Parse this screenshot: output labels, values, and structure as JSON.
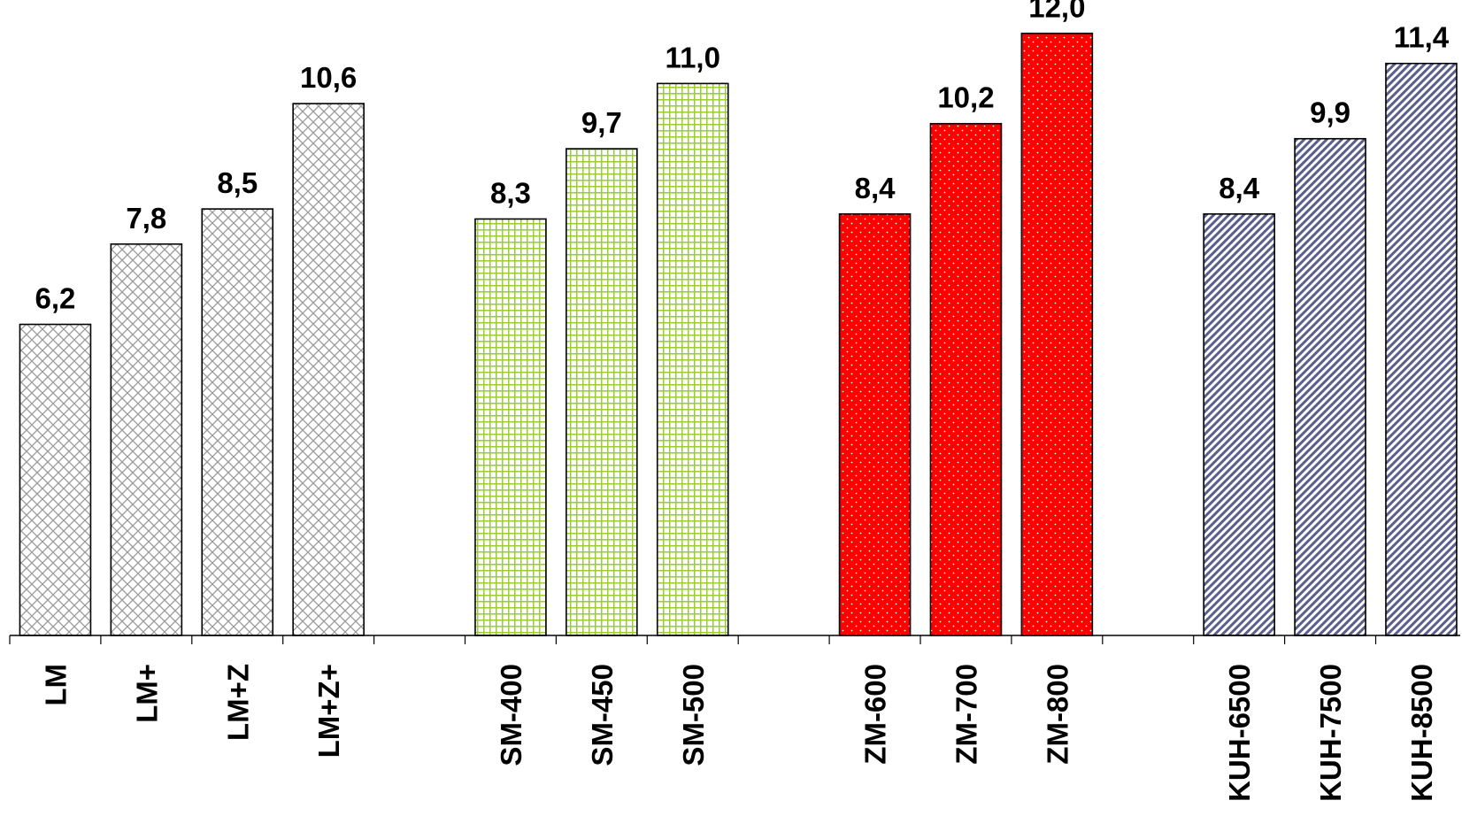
{
  "chart_data": {
    "type": "bar",
    "title": "",
    "xlabel": "",
    "ylabel": "",
    "ylim": [
      0,
      12.4
    ],
    "grid": false,
    "legend": "none",
    "value_labels": "above-bars",
    "category_label_orientation": "vertical",
    "categories": [
      "LM",
      "LM+",
      "LM+Z",
      "LM+Z+",
      "",
      "SM-400",
      "SM-450",
      "SM-500",
      "",
      "ZM-600",
      "ZM-700",
      "ZM-800",
      "",
      "KUH-6500",
      "KUH-7500",
      "KUH-8500"
    ],
    "values": [
      6.2,
      7.8,
      8.5,
      10.6,
      null,
      8.3,
      9.7,
      11.0,
      null,
      8.4,
      10.2,
      12.0,
      null,
      8.4,
      9.9,
      11.4
    ],
    "value_labels_text": [
      "6,2",
      "7,8",
      "8,5",
      "10,6",
      "",
      "8,3",
      "9,7",
      "11,0",
      "",
      "8,4",
      "10,2",
      "12,0",
      "",
      "8,4",
      "9,9",
      "11,4"
    ],
    "groups": [
      {
        "members": [
          "LM",
          "LM+",
          "LM+Z",
          "LM+Z+"
        ],
        "fill": "crosshatch",
        "color": "#9a9a9a",
        "background": "#ffffff"
      },
      {
        "members": [
          "SM-400",
          "SM-450",
          "SM-500"
        ],
        "fill": "grid",
        "color": "#9acd32",
        "background": "#ffffff"
      },
      {
        "members": [
          "ZM-600",
          "ZM-700",
          "ZM-800"
        ],
        "fill": "dots",
        "color": "#ffffff",
        "background": "#ff0000"
      },
      {
        "members": [
          "KUH-6500",
          "KUH-7500",
          "KUH-8500"
        ],
        "fill": "diagonal-stripes",
        "color": "#5a5f8c",
        "background": "#ffffff"
      }
    ]
  }
}
